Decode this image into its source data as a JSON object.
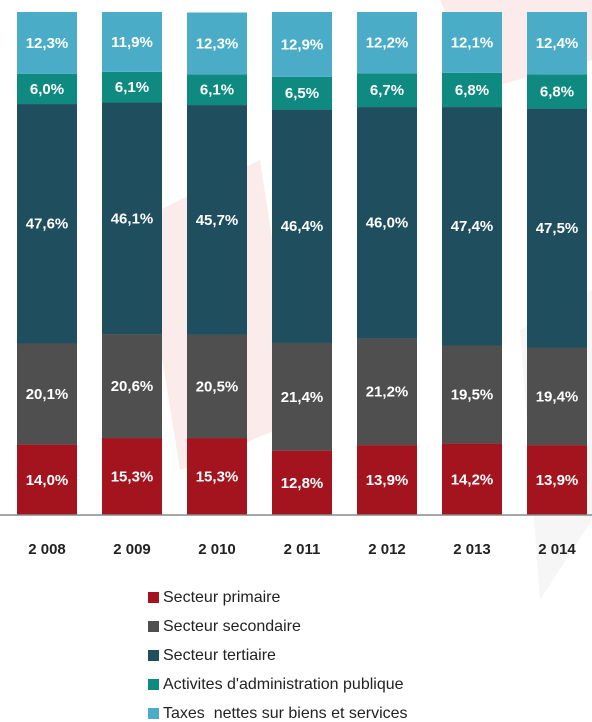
{
  "chart_data": {
    "type": "stacked_bar",
    "categories": [
      "2 008",
      "2 009",
      "2 010",
      "2 011",
      "2 012",
      "2 013",
      "2 014"
    ],
    "ylim": [
      0,
      100
    ],
    "series": [
      {
        "name": "Secteur primaire",
        "color": "#a3141f",
        "values": [
          14.0,
          15.3,
          15.3,
          12.8,
          13.9,
          14.2,
          13.9
        ],
        "value_labels": [
          "14,0%",
          "15,3%",
          "15,3%",
          "12,8%",
          "13,9%",
          "14,2%",
          "13,9%"
        ]
      },
      {
        "name": "Secteur secondaire",
        "color": "#4f4f4f",
        "values": [
          20.1,
          20.6,
          20.5,
          21.4,
          21.2,
          19.5,
          19.4
        ],
        "value_labels": [
          "20,1%",
          "20,6%",
          "20,5%",
          "21,4%",
          "21,2%",
          "19,5%",
          "19,4%"
        ]
      },
      {
        "name": "Secteur tertiaire",
        "color": "#1f4e5e",
        "values": [
          47.6,
          46.1,
          45.7,
          46.4,
          46.0,
          47.4,
          47.5
        ],
        "value_labels": [
          "47,6%",
          "46,1%",
          "45,7%",
          "46,4%",
          "46,0%",
          "47,4%",
          "47,5%"
        ]
      },
      {
        "name": "Activites d'administration publique",
        "color": "#0f8a80",
        "values": [
          6.0,
          6.1,
          6.1,
          6.5,
          6.7,
          6.8,
          6.8
        ],
        "value_labels": [
          "6,0%",
          "6,1%",
          "6,1%",
          "6,5%",
          "6,7%",
          "6,8%",
          "6,8%"
        ]
      },
      {
        "name": "Taxes  nettes sur biens et services",
        "color": "#4aacc6",
        "values": [
          12.3,
          11.9,
          12.3,
          12.9,
          12.2,
          12.1,
          12.4
        ],
        "value_labels": [
          "12,3%",
          "11,9%",
          "12,3%",
          "12,9%",
          "12,2%",
          "12,1%",
          "12,4%"
        ]
      }
    ]
  }
}
